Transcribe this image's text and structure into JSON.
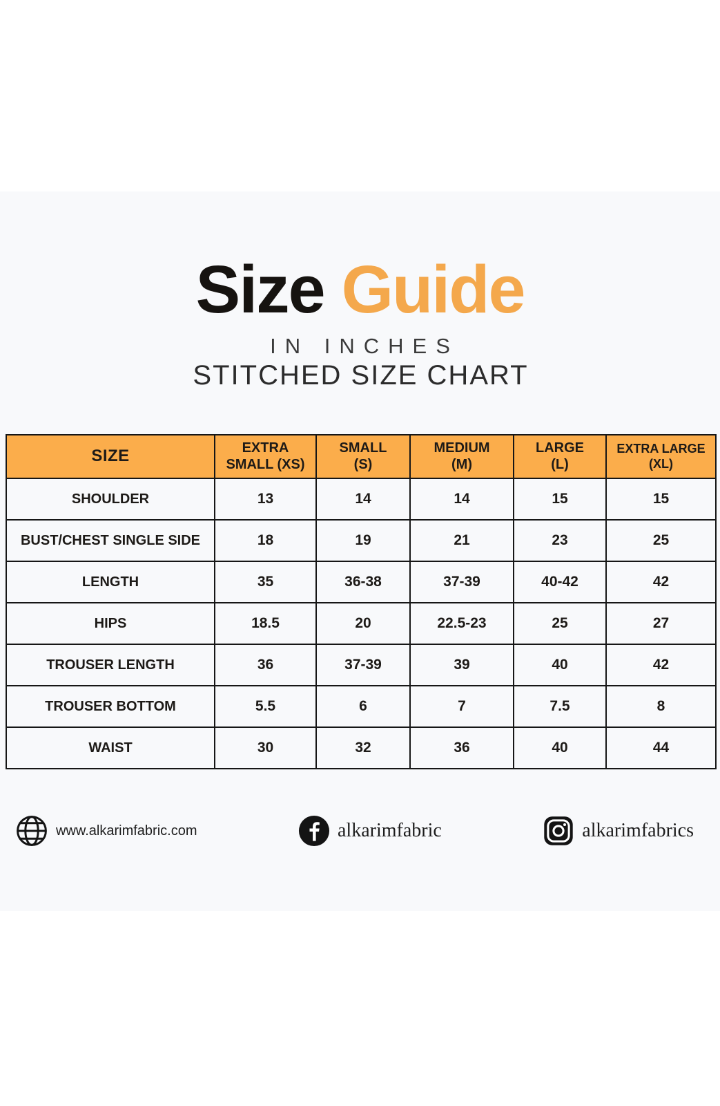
{
  "header": {
    "title_black": "Size",
    "title_orange": "Guide",
    "subtitle": "IN INCHES",
    "chart_label": "STITCHED SIZE CHART"
  },
  "colors": {
    "accent_orange_header": "#FBAD4B",
    "accent_orange_title": "#F4A84C",
    "band_background": "#F8F9FB",
    "ink": "#161616"
  },
  "chart_data": {
    "type": "table",
    "title": "Size Guide",
    "subtitle": "IN INCHES",
    "chart_label": "STITCHED SIZE CHART",
    "unit": "inches",
    "columns": [
      "SIZE",
      "EXTRA\nSMALL (XS)",
      "SMALL\n(S)",
      "MEDIUM\n(M)",
      "LARGE\n(L)",
      "EXTRA LARGE\n(XL)"
    ],
    "rows": [
      {
        "label": "SHOULDER",
        "values": [
          "13",
          "14",
          "14",
          "15",
          "15"
        ]
      },
      {
        "label": "BUST/CHEST SINGLE SIDE",
        "values": [
          "18",
          "19",
          "21",
          "23",
          "25"
        ]
      },
      {
        "label": "LENGTH",
        "values": [
          "35",
          "36-38",
          "37-39",
          "40-42",
          "42"
        ]
      },
      {
        "label": "HIPS",
        "values": [
          "18.5",
          "20",
          "22.5-23",
          "25",
          "27"
        ]
      },
      {
        "label": "TROUSER LENGTH",
        "values": [
          "36",
          "37-39",
          "39",
          "40",
          "42"
        ]
      },
      {
        "label": "TROUSER BOTTOM",
        "values": [
          "5.5",
          "6",
          "7",
          "7.5",
          "8"
        ]
      },
      {
        "label": "WAIST",
        "values": [
          "30",
          "32",
          "36",
          "40",
          "44"
        ]
      }
    ]
  },
  "footer": {
    "website": "www.alkarimfabric.com",
    "facebook": "alkarimfabric",
    "instagram": "alkarimfabrics"
  }
}
